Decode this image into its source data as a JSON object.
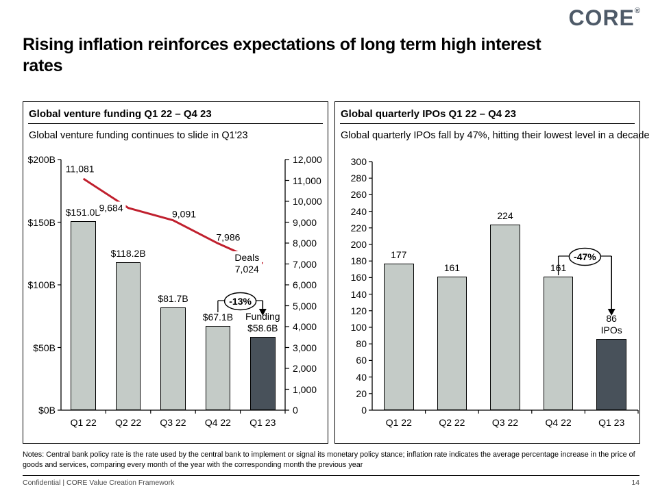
{
  "logo": {
    "text": "CORE",
    "registered": "®"
  },
  "title": "Rising inflation reinforces expectations of long term high interest rates",
  "panels": [
    {
      "header": "Global venture funding Q1 22 – Q4 23",
      "subtitle": "Global venture funding continues to slide in Q1'23"
    },
    {
      "header": "Global quarterly IPOs Q1 22 – Q4 23",
      "subtitle": "Global quarterly IPOs fall by 47%, hitting their lowest level in a decade"
    }
  ],
  "chart_data": [
    {
      "type": "combo",
      "title": "Global venture funding Q1 22 – Q4 23",
      "categories": [
        "Q1 22",
        "Q2 22",
        "Q3 22",
        "Q4 22",
        "Q1 23"
      ],
      "series": [
        {
          "name": "Funding",
          "type": "bar",
          "axis": "left",
          "values": [
            151.0,
            118.2,
            81.7,
            67.1,
            58.6
          ],
          "labels": [
            "$151.0B",
            "$118.2B",
            "$81.7B",
            "$67.1B",
            "Funding\n$58.6B"
          ]
        },
        {
          "name": "Deals",
          "type": "line",
          "axis": "right",
          "values": [
            11081,
            9684,
            9091,
            7986,
            7024
          ],
          "labels": [
            "11,081",
            "9,684",
            "9,091",
            "7,986",
            "Deals\n7,024"
          ]
        }
      ],
      "left_axis": {
        "min": 0,
        "max": 200,
        "ticks": [
          "$200B",
          "$150B",
          "$100B",
          "$50B",
          "$0B"
        ]
      },
      "right_axis": {
        "min": 0,
        "max": 12000,
        "ticks": [
          "12,000",
          "11,000",
          "10,000",
          "9,000",
          "8,000",
          "7,000",
          "6,000",
          "5,000",
          "4,000",
          "3,000",
          "2,000",
          "1,000",
          "0"
        ]
      },
      "highlight_index": 4,
      "callout": {
        "label": "-13%",
        "from_index": 3,
        "to_index": 4
      }
    },
    {
      "type": "bar",
      "title": "Global quarterly IPOs Q1 22 – Q4 23",
      "categories": [
        "Q1 22",
        "Q2 22",
        "Q3 22",
        "Q4 22",
        "Q1 23"
      ],
      "series": [
        {
          "name": "IPOs",
          "type": "bar",
          "axis": "left",
          "values": [
            177,
            161,
            224,
            161,
            86
          ],
          "labels": [
            "177",
            "161",
            "224",
            "161",
            "86\nIPOs"
          ]
        }
      ],
      "left_axis": {
        "min": 0,
        "max": 300,
        "ticks": [
          "300",
          "280",
          "260",
          "240",
          "220",
          "200",
          "180",
          "160",
          "140",
          "120",
          "100",
          "80",
          "60",
          "40",
          "20",
          "0"
        ]
      },
      "highlight_index": 4,
      "callout": {
        "label": "-47%",
        "from_index": 3,
        "to_index": 4
      }
    }
  ],
  "colors": {
    "bar": "#C4CBC7",
    "bar_highlight": "#48515A",
    "line": "#C0202E",
    "logo": "#4E5A68",
    "axis": "#000000"
  },
  "notes": "Notes: Central bank policy rate is the rate used by the central bank to implement or signal its monetary policy stance; inflation rate indicates the average percentage increase in the price of goods and services, comparing every month of the year with the corresponding month the previous year",
  "footer": {
    "left": "Confidential | CORE Value Creation Framework",
    "page": "14"
  }
}
